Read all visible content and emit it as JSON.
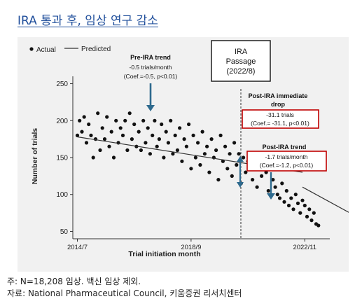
{
  "page": {
    "title": "IRA 통과 후, 임상 연구 감소",
    "note": "주: N=18,208 임상. 백신 임상 제외.",
    "source": "자료: National Pharmaceutical Council, 키움증권 리서치센터"
  },
  "colors": {
    "title": "#1f4e9b",
    "annotation_arrow": "#2e6a8e",
    "highlight_box": "#c00000",
    "points": "#111111",
    "trend": "#333333"
  },
  "chart_data": {
    "type": "scatter",
    "xlabel": "Trial initiation month",
    "ylabel": "Number of trials",
    "x_ticks": [
      "2014/7",
      "2018/9",
      "2022/11"
    ],
    "y_ticks": [
      50,
      100,
      150,
      200,
      250
    ],
    "ylim": [
      40,
      260
    ],
    "x_range_months": [
      -2,
      111
    ],
    "grid": false,
    "legend": {
      "position": "top-left",
      "items": [
        "Actual",
        "Predicted"
      ]
    },
    "series": [
      {
        "name": "Actual",
        "kind": "points",
        "x_months": [
          0,
          1,
          2,
          3,
          4,
          5,
          6,
          7,
          8,
          9,
          10,
          11,
          12,
          13,
          14,
          15,
          16,
          17,
          18,
          19,
          20,
          21,
          22,
          23,
          24,
          25,
          26,
          27,
          28,
          29,
          30,
          31,
          32,
          33,
          34,
          35,
          36,
          37,
          38,
          39,
          40,
          41,
          42,
          43,
          44,
          45,
          46,
          47,
          48,
          49,
          50,
          51,
          52,
          53,
          54,
          55,
          56,
          57,
          58,
          59,
          60,
          61,
          62,
          63,
          64,
          65,
          66,
          67,
          68,
          69,
          70,
          71,
          72,
          73,
          74,
          75,
          76,
          77,
          78,
          79,
          80,
          81,
          82,
          83,
          84,
          85,
          86,
          87,
          88,
          89,
          90,
          91,
          92,
          93,
          94,
          95,
          96,
          97,
          98,
          99,
          100,
          101,
          102,
          103,
          104,
          105,
          106
        ],
        "y_values": [
          180,
          200,
          185,
          205,
          170,
          195,
          180,
          150,
          175,
          210,
          160,
          190,
          175,
          205,
          165,
          185,
          150,
          200,
          170,
          190,
          180,
          200,
          160,
          210,
          175,
          195,
          165,
          185,
          160,
          200,
          170,
          190,
          155,
          180,
          200,
          165,
          175,
          195,
          150,
          185,
          170,
          200,
          155,
          180,
          160,
          190,
          145,
          175,
          165,
          195,
          135,
          180,
          150,
          170,
          140,
          185,
          155,
          165,
          130,
          175,
          150,
          160,
          120,
          180,
          145,
          165,
          135,
          155,
          125,
          170,
          140,
          155,
          115,
          150,
          130,
          145,
          135,
          120,
          150,
          110,
          140,
          125,
          145,
          130,
          105,
          138,
          120,
          110,
          100,
          95,
          115,
          90,
          105,
          85,
          95,
          80,
          100,
          88,
          75,
          92,
          85,
          70,
          80,
          65,
          75,
          60,
          58
        ]
      },
      {
        "name": "Predicted",
        "kind": "line",
        "segments": [
          {
            "x_months": [
              0,
              99
            ],
            "y_values": [
              178,
              130
            ]
          },
          {
            "x_months": [
              99,
              124
            ],
            "y_values": [
              110,
              68
            ]
          }
        ]
      }
    ],
    "annotations": {
      "passage_box": {
        "lines": [
          "IRA",
          "Passage",
          "(2022/8)"
        ]
      },
      "pre_trend": {
        "lines": [
          "Pre-IRA trend",
          "-0.5 trials/month",
          "(Coef.=-0.5, p<0.01)"
        ]
      },
      "drop_header": {
        "lines": [
          "Post-IRA immediate",
          "drop"
        ]
      },
      "drop_box": {
        "lines": [
          "-31.1 trials",
          "(Coef.= -31.1, p<0.01)"
        ]
      },
      "post_trend_title": "Post-IRA trend",
      "post_trend_box": {
        "lines": [
          "-1.7 trials/month",
          "(Coef.=-1.2, p<0.01)"
        ]
      }
    }
  }
}
